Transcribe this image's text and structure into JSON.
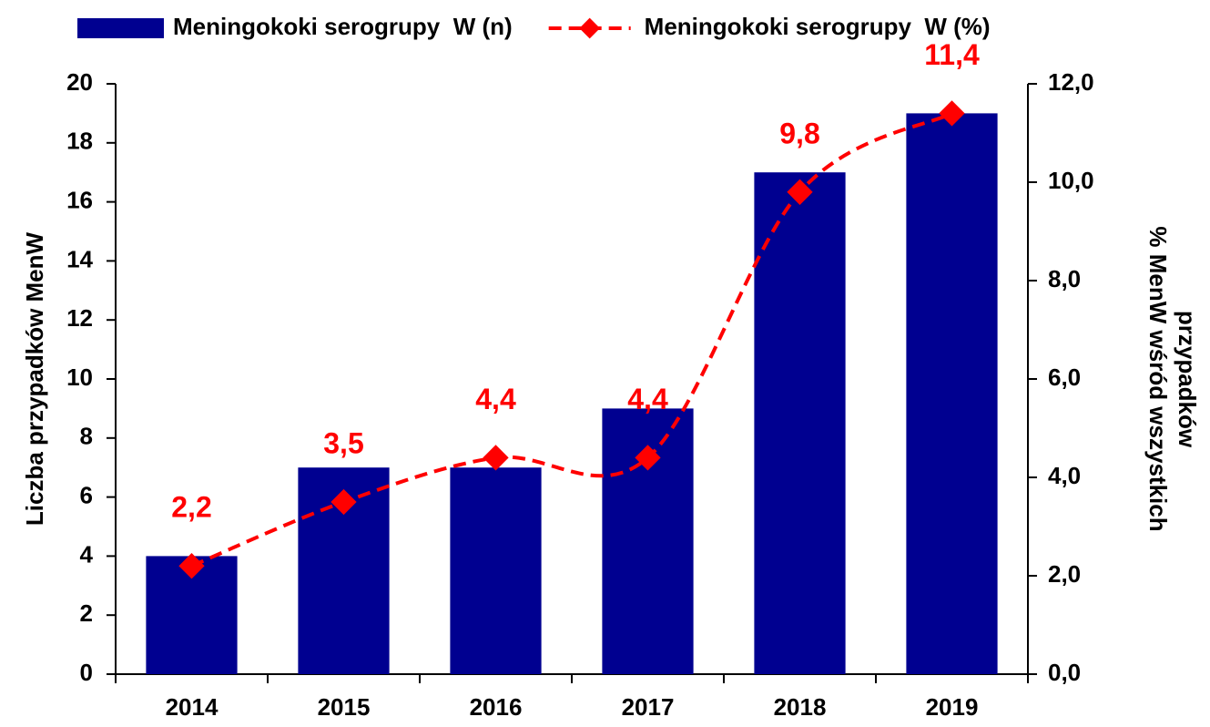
{
  "chart_data": {
    "type": "bar_line",
    "categories": [
      "2014",
      "2015",
      "2016",
      "2017",
      "2018",
      "2019"
    ],
    "series": [
      {
        "name": "Meningokoki serogrupy  W (n)",
        "type": "bar",
        "color": "#000090",
        "values": [
          4,
          7,
          7,
          9,
          17,
          19
        ]
      },
      {
        "name": "Meningokoki serogrupy  W (%)",
        "type": "line",
        "axis": "y2",
        "color": "#ff0000",
        "values": [
          2.2,
          3.5,
          4.4,
          4.4,
          9.8,
          11.4
        ],
        "value_labels": [
          "2,2",
          "3,5",
          "4,4",
          "4,4",
          "9,8",
          "11,4"
        ]
      }
    ],
    "ylabel": "Liczba przypadków  MenW",
    "y2label": [
      "% MenW wśród wszystkich",
      "przypadków"
    ],
    "ylim": [
      0,
      20
    ],
    "yticks": [
      0,
      2,
      4,
      6,
      8,
      10,
      12,
      14,
      16,
      18,
      20
    ],
    "y2lim": [
      0,
      12
    ],
    "y2ticks": [
      {
        "value": 0,
        "label": "0,0"
      },
      {
        "value": 2,
        "label": "2,0"
      },
      {
        "value": 4,
        "label": "4,0"
      },
      {
        "value": 6,
        "label": "6,0"
      },
      {
        "value": 8,
        "label": "8,0"
      },
      {
        "value": 10,
        "label": "10,0"
      },
      {
        "value": 12,
        "label": "12,0"
      }
    ],
    "grid": false,
    "legend": "top"
  }
}
